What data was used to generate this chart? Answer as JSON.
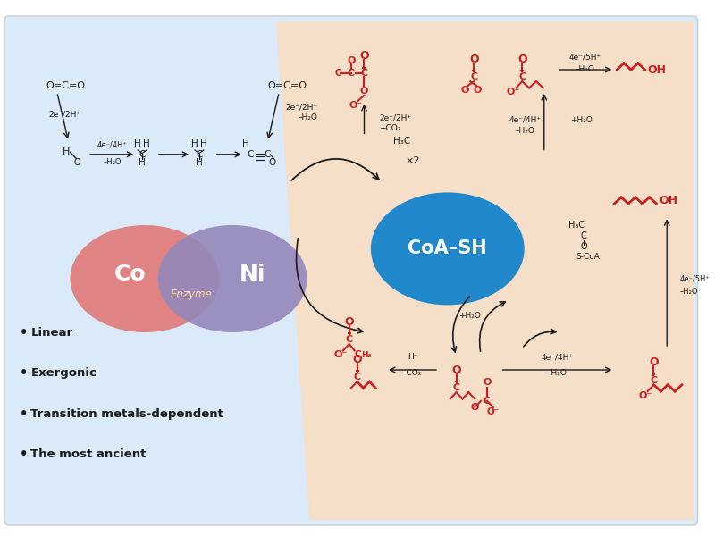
{
  "fig_width": 8.0,
  "fig_height": 6.0,
  "dpi": 100,
  "bg_color": "#ffffff",
  "panel_left_color": "#daeaf8",
  "panel_right_color": "#f5dfc8",
  "red_color": "#cc2020",
  "black_color": "#1a1a1a",
  "bullet_fontsize": 9.5,
  "bullet_points": [
    "Linear",
    "Exergonic",
    "Transition metals-dependent",
    "The most ancient"
  ]
}
